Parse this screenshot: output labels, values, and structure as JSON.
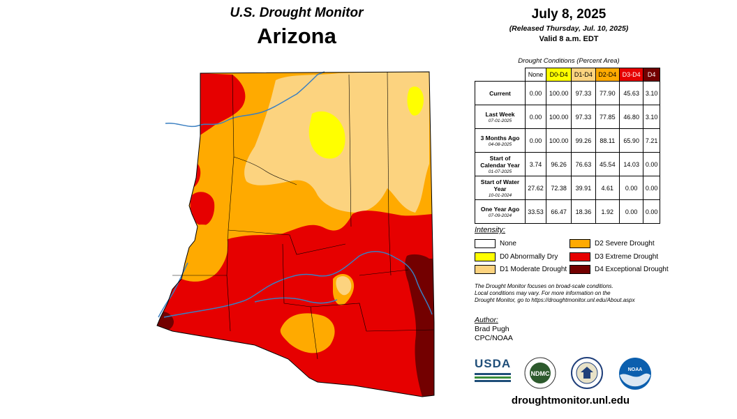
{
  "header": {
    "subtitle": "U.S. Drought Monitor",
    "state": "Arizona",
    "date": "July 8, 2025",
    "released": "(Released Thursday, Jul. 10, 2025)",
    "valid": "Valid 8 a.m. EDT"
  },
  "table": {
    "caption": "Drought Conditions (Percent Area)",
    "columns": [
      "None",
      "D0-D4",
      "D1-D4",
      "D2-D4",
      "D3-D4",
      "D4"
    ],
    "rows": [
      {
        "label": "Current",
        "date": "",
        "values": [
          "0.00",
          "100.00",
          "97.33",
          "77.90",
          "45.63",
          "3.10"
        ]
      },
      {
        "label": "Last Week",
        "date": "07-01-2025",
        "values": [
          "0.00",
          "100.00",
          "97.33",
          "77.85",
          "46.80",
          "3.10"
        ]
      },
      {
        "label": "3 Months Ago",
        "date": "04-08-2025",
        "values": [
          "0.00",
          "100.00",
          "99.26",
          "88.11",
          "65.90",
          "7.21"
        ]
      },
      {
        "label": "Start of Calendar Year",
        "date": "01-07-2025",
        "values": [
          "3.74",
          "96.26",
          "76.63",
          "45.54",
          "14.03",
          "0.00"
        ]
      },
      {
        "label": "Start of Water Year",
        "date": "10-01-2024",
        "values": [
          "27.62",
          "72.38",
          "39.91",
          "4.61",
          "0.00",
          "0.00"
        ]
      },
      {
        "label": "One Year Ago",
        "date": "07-09-2024",
        "values": [
          "33.53",
          "66.47",
          "18.36",
          "1.92",
          "0.00",
          "0.00"
        ]
      }
    ]
  },
  "legend": {
    "title": "Intensity:",
    "items": [
      {
        "label": "None",
        "color": "#ffffff"
      },
      {
        "label": "D0 Abnormally Dry",
        "color": "#ffff00"
      },
      {
        "label": "D1 Moderate Drought",
        "color": "#fcd37f"
      },
      {
        "label": "D2 Severe Drought",
        "color": "#ffaa00"
      },
      {
        "label": "D3 Extreme Drought",
        "color": "#e60000"
      },
      {
        "label": "D4 Exceptional Drought",
        "color": "#730000"
      }
    ]
  },
  "note": {
    "line1": "The Drought Monitor focuses on broad-scale conditions.",
    "line2": "Local conditions may vary. For more information on the",
    "line3": "Drought Monitor, go to https://droughtmonitor.unl.edu/About.aspx"
  },
  "author": {
    "heading": "Author:",
    "name": "Brad Pugh",
    "org": "CPC/NOAA"
  },
  "logos": {
    "usda": "USDA",
    "ndmc": "NDMC",
    "noaa": "NOAA"
  },
  "url": "droughtmonitor.unl.edu"
}
